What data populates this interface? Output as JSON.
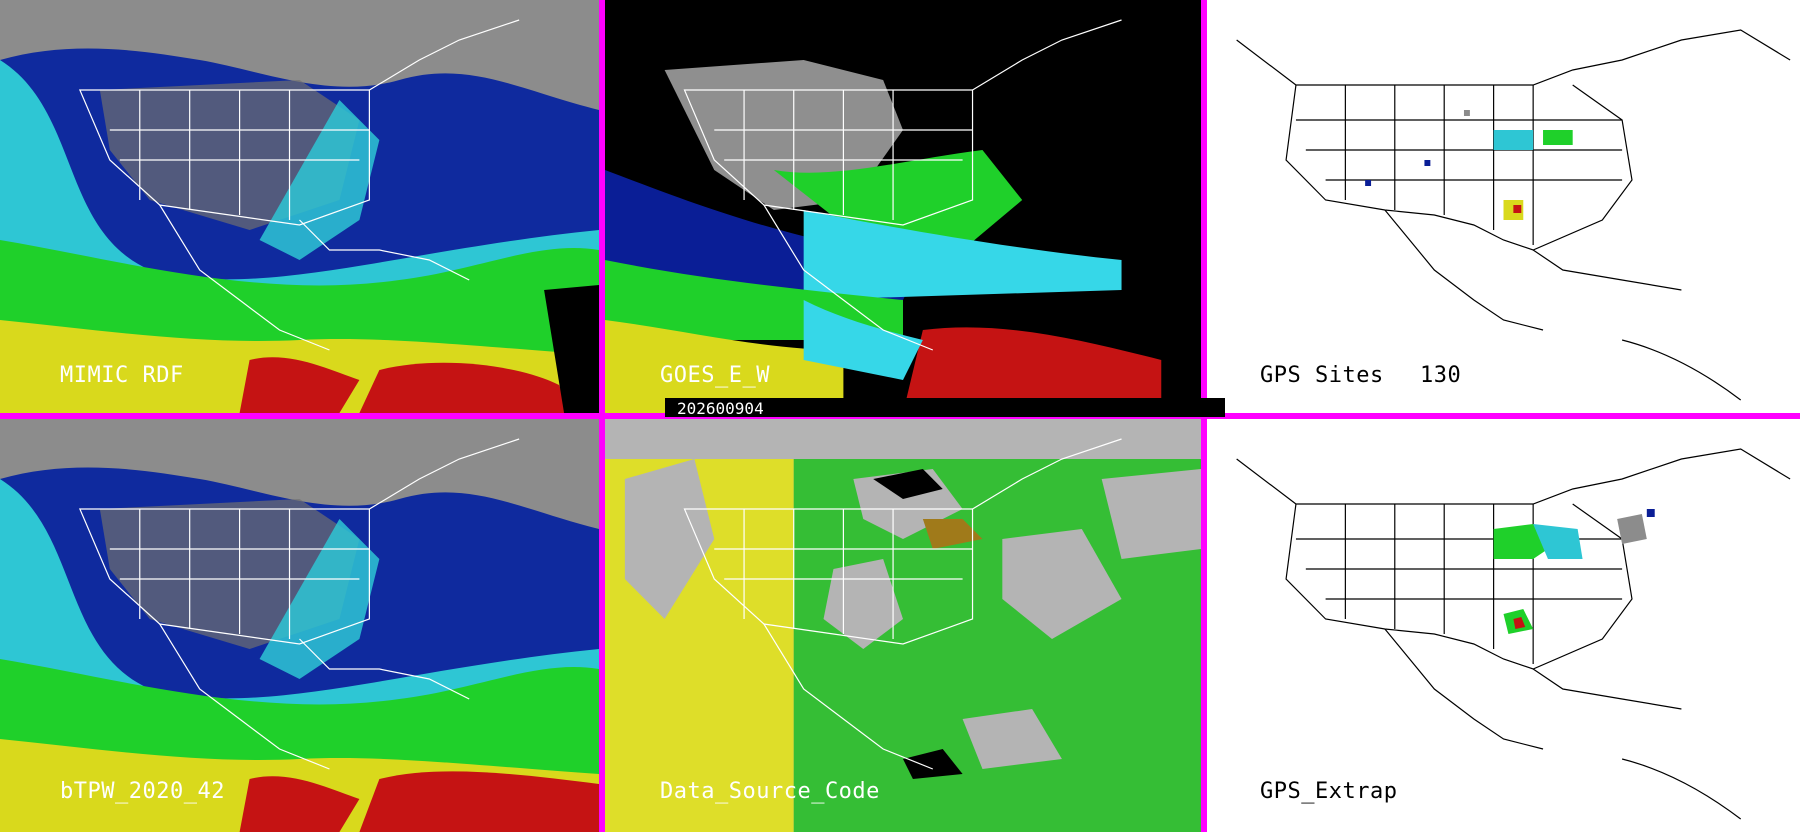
{
  "panels": {
    "top_left": {
      "label": "MIMIC RDF"
    },
    "top_middle": {
      "label": "GOES_E_W",
      "date": "202600904"
    },
    "top_right": {
      "label": "GPS Sites",
      "count": "130"
    },
    "bottom_left": {
      "label": "bTPW_2020_42"
    },
    "bottom_middle": {
      "label": "Data_Source_Code"
    },
    "bottom_right": {
      "label": "GPS_Extrap"
    }
  },
  "colors": {
    "separator": "#ff00ff",
    "tpw_dry": "#9a9a9a",
    "tpw_low": "#0a1e96",
    "tpw_mid": "#36d7e8",
    "tpw_high": "#1fe01f",
    "tpw_higher": "#e0e020",
    "tpw_max": "#c80f0f",
    "source_gray": "#b4b4b4",
    "source_yellow": "#e2e21a",
    "source_green": "#1fbf1f"
  }
}
